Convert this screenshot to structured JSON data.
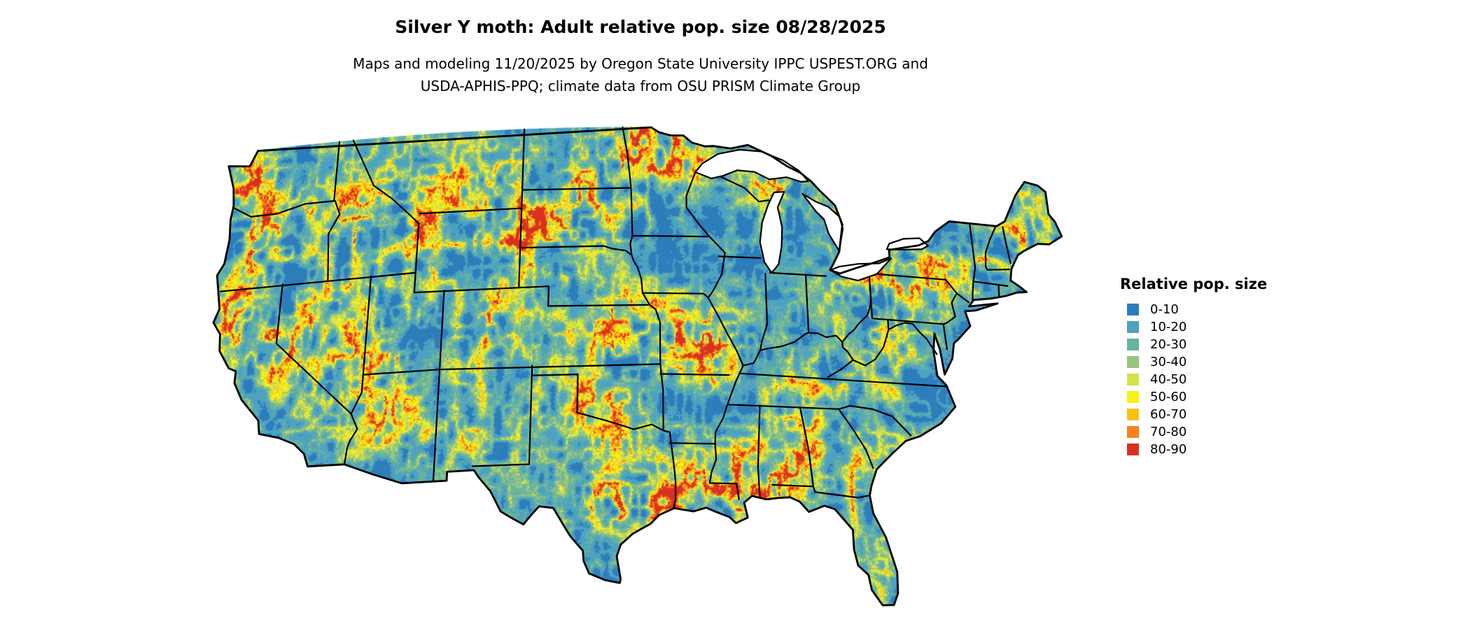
{
  "title": "Silver Y moth: Adult relative pop. size 08/28/2025",
  "subtitle_line1": "Maps and modeling 11/20/2025 by Oregon State University IPPC USPEST.ORG and",
  "subtitle_line2": "USDA-APHIS-PPQ; climate data from OSU PRISM Climate Group",
  "map": {
    "region": "Contiguous United States",
    "background_color": "#ffffff",
    "outline_color": "#000000"
  },
  "legend": {
    "title": "Relative pop. size",
    "items": [
      {
        "label": "0-10",
        "color": "#2d7dbb"
      },
      {
        "label": "10-20",
        "color": "#4da2c0"
      },
      {
        "label": "20-30",
        "color": "#68b2a0"
      },
      {
        "label": "30-40",
        "color": "#96c57e"
      },
      {
        "label": "40-50",
        "color": "#d3e14a"
      },
      {
        "label": "50-60",
        "color": "#fbf116"
      },
      {
        "label": "60-70",
        "color": "#fcc211"
      },
      {
        "label": "70-80",
        "color": "#f5831f"
      },
      {
        "label": "80-90",
        "color": "#d93120"
      }
    ]
  }
}
